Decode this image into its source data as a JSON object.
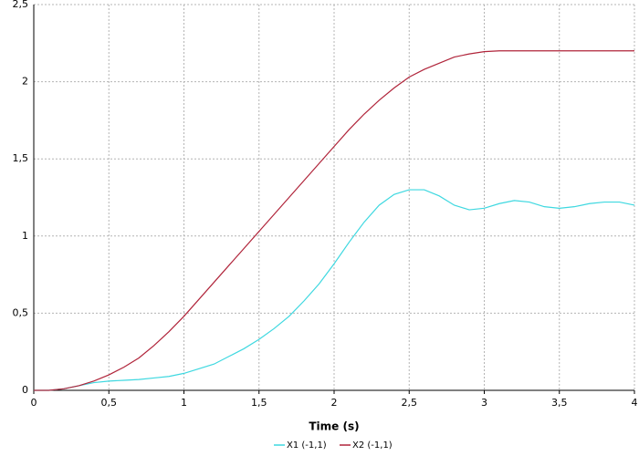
{
  "chart_data": {
    "type": "line",
    "x_label": "Time (s)",
    "x": [
      0,
      0.1,
      0.2,
      0.3,
      0.4,
      0.5,
      0.6,
      0.7,
      0.8,
      0.9,
      1.0,
      1.1,
      1.2,
      1.3,
      1.4,
      1.5,
      1.6,
      1.7,
      1.8,
      1.9,
      2.0,
      2.1,
      2.2,
      2.3,
      2.4,
      2.5,
      2.6,
      2.7,
      2.8,
      2.9,
      3.0,
      3.1,
      3.2,
      3.3,
      3.4,
      3.5,
      3.6,
      3.7,
      3.8,
      3.9,
      4.0
    ],
    "series": [
      {
        "name": "X1 (-1,1)",
        "color": "#3ed8e0",
        "values": [
          0,
          0,
          0.01,
          0.03,
          0.05,
          0.06,
          0.065,
          0.07,
          0.08,
          0.09,
          0.11,
          0.14,
          0.17,
          0.22,
          0.27,
          0.33,
          0.4,
          0.48,
          0.58,
          0.69,
          0.82,
          0.96,
          1.09,
          1.2,
          1.27,
          1.3,
          1.3,
          1.26,
          1.2,
          1.17,
          1.18,
          1.21,
          1.23,
          1.22,
          1.19,
          1.18,
          1.19,
          1.21,
          1.22,
          1.22,
          1.2
        ]
      },
      {
        "name": "X2 (-1,1)",
        "color": "#b0243a",
        "values": [
          0,
          0,
          0.01,
          0.03,
          0.06,
          0.1,
          0.15,
          0.21,
          0.29,
          0.38,
          0.48,
          0.59,
          0.7,
          0.81,
          0.92,
          1.03,
          1.14,
          1.25,
          1.36,
          1.47,
          1.58,
          1.69,
          1.79,
          1.88,
          1.96,
          2.03,
          2.08,
          2.12,
          2.16,
          2.18,
          2.195,
          2.2,
          2.2,
          2.2,
          2.2,
          2.2,
          2.2,
          2.2,
          2.2,
          2.2,
          2.2
        ]
      }
    ],
    "xlim": [
      0,
      4
    ],
    "xticks": [
      0,
      {
        "value": 0.5,
        "label": "0,5"
      },
      1,
      {
        "value": 1.5,
        "label": "1,5"
      },
      2,
      {
        "value": 2.5,
        "label": "2,5"
      },
      3,
      {
        "value": 3.5,
        "label": "3,5"
      },
      4
    ],
    "ylim": [
      0,
      2.5
    ],
    "yticks": [
      0,
      {
        "value": 0.5,
        "label": "0,5"
      },
      1,
      {
        "value": 1.5,
        "label": "1,5"
      },
      2,
      {
        "value": 2.5,
        "label": "2,5"
      }
    ],
    "grid": true
  }
}
